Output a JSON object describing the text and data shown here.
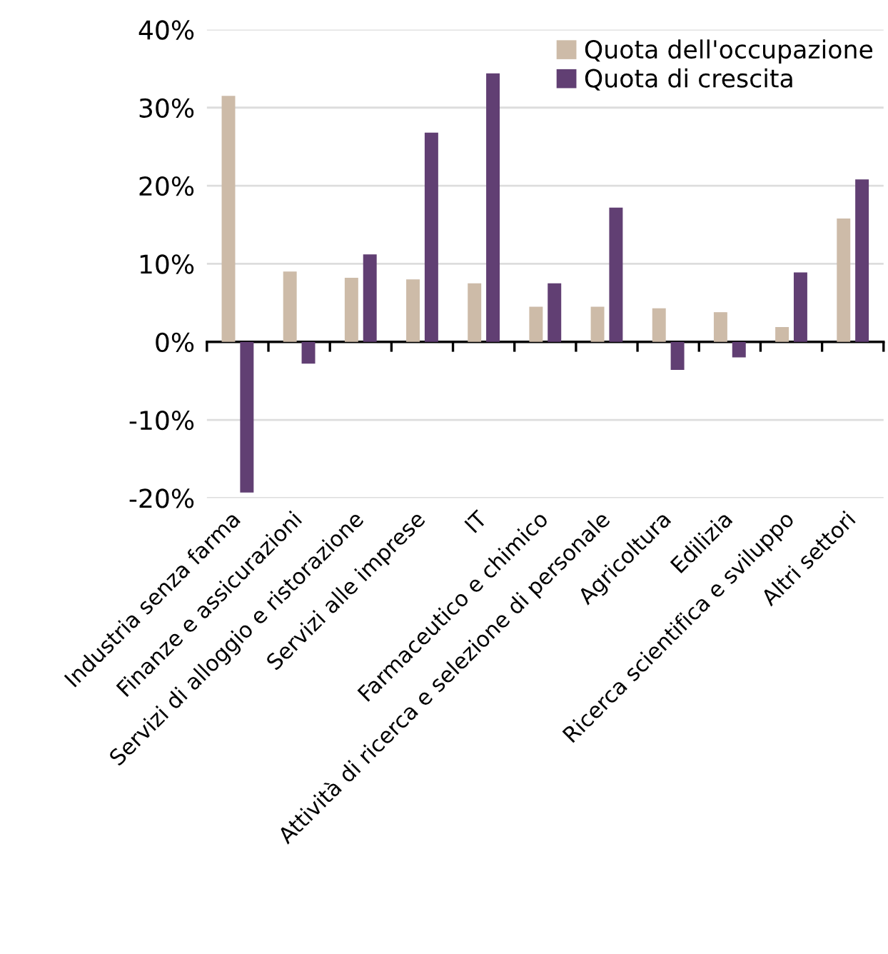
{
  "chart_data": {
    "type": "bar",
    "categories": [
      "Industria senza farma",
      "Finanze e assicurazioni",
      "Servizi di alloggio e ristorazione",
      "Servizi alle imprese",
      "IT",
      "Farmaceutico e chimico",
      "Attività di ricerca e selezione di personale",
      "Agricoltura",
      "Edilizia",
      "Ricerca scientifica e sviluppo",
      "Altri settori"
    ],
    "series": [
      {
        "name": "Quota dell'occupazione",
        "color": "#cdbba8",
        "values": [
          31.5,
          9,
          8.2,
          8,
          7.5,
          4.5,
          4.5,
          4.3,
          3.8,
          1.9,
          15.8
        ]
      },
      {
        "name": "Quota di crescita",
        "color": "#613f73",
        "values": [
          -19.3,
          -2.8,
          11.2,
          26.8,
          34.4,
          7.5,
          17.2,
          -3.6,
          -2,
          8.9,
          20.8
        ]
      }
    ],
    "ylim": [
      -20,
      40
    ],
    "yticks": [
      {
        "value": -20,
        "label": "-20%"
      },
      {
        "value": -10,
        "label": "-10%"
      },
      {
        "value": 0,
        "label": "0%"
      },
      {
        "value": 10,
        "label": "10%"
      },
      {
        "value": 20,
        "label": "20%"
      },
      {
        "value": 30,
        "label": "30%"
      },
      {
        "value": 40,
        "label": "40%"
      }
    ],
    "grid": "y",
    "legend": "top right"
  }
}
